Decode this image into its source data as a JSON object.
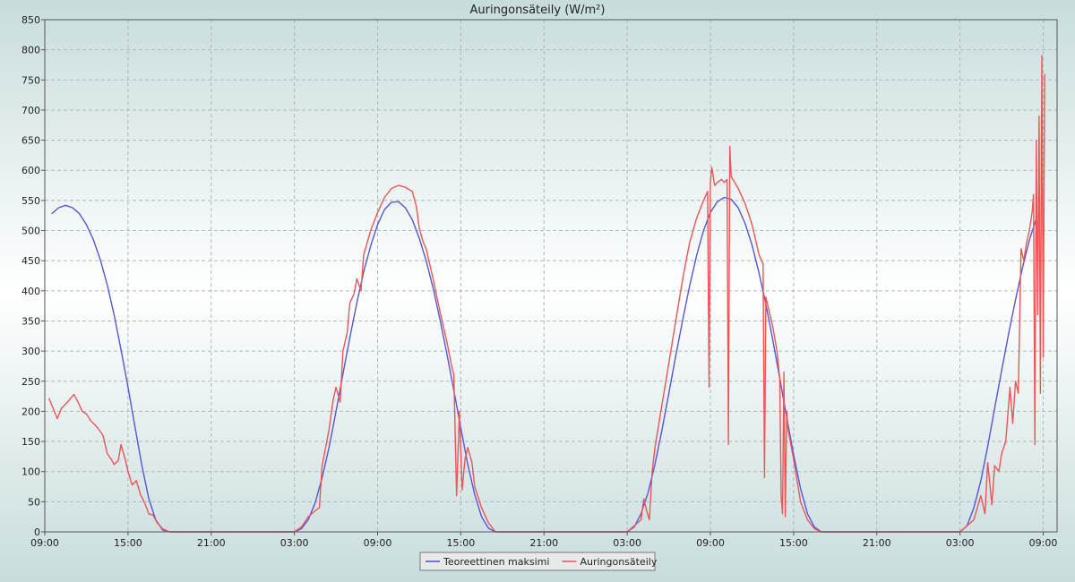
{
  "chart_data": {
    "type": "line",
    "title": "Auringonsäteily (W/m²)",
    "xlabel": "",
    "ylabel": "",
    "x_range_hours": [
      0,
      73
    ],
    "ylim": [
      0,
      850
    ],
    "y_ticks": [
      0,
      50,
      100,
      150,
      200,
      250,
      300,
      350,
      400,
      450,
      500,
      550,
      600,
      650,
      700,
      750,
      800,
      850
    ],
    "x_ticks": [
      {
        "h": 0,
        "label": "09:00"
      },
      {
        "h": 6,
        "label": "15:00"
      },
      {
        "h": 12,
        "label": "21:00"
      },
      {
        "h": 18,
        "label": "03:00"
      },
      {
        "h": 24,
        "label": "09:00"
      },
      {
        "h": 30,
        "label": "15:00"
      },
      {
        "h": 36,
        "label": "21:00"
      },
      {
        "h": 42,
        "label": "03:00"
      },
      {
        "h": 48,
        "label": "09:00"
      },
      {
        "h": 54,
        "label": "15:00"
      },
      {
        "h": 60,
        "label": "21:00"
      },
      {
        "h": 66,
        "label": "03:00"
      },
      {
        "h": 72,
        "label": "09:00"
      }
    ],
    "grid": true,
    "legend_position": "bottom-center",
    "series": [
      {
        "name": "Teoreettinen maksimi",
        "color": "#5555dd",
        "points": [
          [
            0.5,
            528
          ],
          [
            1.0,
            538
          ],
          [
            1.5,
            542
          ],
          [
            2.0,
            538
          ],
          [
            2.5,
            528
          ],
          [
            3.0,
            510
          ],
          [
            3.5,
            485
          ],
          [
            4.0,
            452
          ],
          [
            4.5,
            410
          ],
          [
            5.0,
            360
          ],
          [
            5.5,
            302
          ],
          [
            6.0,
            240
          ],
          [
            6.5,
            175
          ],
          [
            7.0,
            110
          ],
          [
            7.5,
            55
          ],
          [
            8.0,
            20
          ],
          [
            8.5,
            3
          ],
          [
            9.0,
            0
          ],
          [
            12,
            0
          ],
          [
            17,
            0
          ],
          [
            18.0,
            0
          ],
          [
            18.5,
            5
          ],
          [
            19.0,
            20
          ],
          [
            19.5,
            48
          ],
          [
            20.0,
            90
          ],
          [
            20.5,
            140
          ],
          [
            21.0,
            200
          ],
          [
            21.5,
            262
          ],
          [
            22.0,
            322
          ],
          [
            22.5,
            380
          ],
          [
            23.0,
            432
          ],
          [
            23.5,
            475
          ],
          [
            24.0,
            510
          ],
          [
            24.5,
            535
          ],
          [
            25.0,
            547
          ],
          [
            25.5,
            548
          ],
          [
            26.0,
            538
          ],
          [
            26.5,
            518
          ],
          [
            27.0,
            488
          ],
          [
            27.5,
            450
          ],
          [
            28.0,
            405
          ],
          [
            28.5,
            352
          ],
          [
            29.0,
            295
          ],
          [
            29.5,
            235
          ],
          [
            30.0,
            172
          ],
          [
            30.5,
            112
          ],
          [
            31.0,
            62
          ],
          [
            31.5,
            25
          ],
          [
            32.0,
            6
          ],
          [
            32.5,
            0
          ],
          [
            36,
            0
          ],
          [
            41,
            0
          ],
          [
            42.0,
            0
          ],
          [
            42.5,
            8
          ],
          [
            43.0,
            30
          ],
          [
            43.5,
            65
          ],
          [
            44.0,
            112
          ],
          [
            44.5,
            168
          ],
          [
            45.0,
            230
          ],
          [
            45.5,
            292
          ],
          [
            46.0,
            352
          ],
          [
            46.5,
            408
          ],
          [
            47.0,
            458
          ],
          [
            47.5,
            500
          ],
          [
            48.0,
            530
          ],
          [
            48.5,
            548
          ],
          [
            49.0,
            555
          ],
          [
            49.5,
            552
          ],
          [
            50.0,
            538
          ],
          [
            50.5,
            512
          ],
          [
            51.0,
            476
          ],
          [
            51.5,
            430
          ],
          [
            52.0,
            378
          ],
          [
            52.5,
            318
          ],
          [
            53.0,
            255
          ],
          [
            53.5,
            190
          ],
          [
            54.0,
            128
          ],
          [
            54.5,
            72
          ],
          [
            55.0,
            30
          ],
          [
            55.5,
            8
          ],
          [
            56.0,
            0
          ],
          [
            60,
            0
          ],
          [
            65,
            0
          ],
          [
            66.0,
            0
          ],
          [
            66.5,
            10
          ],
          [
            67.0,
            40
          ],
          [
            67.5,
            85
          ],
          [
            68.0,
            142
          ],
          [
            68.5,
            205
          ],
          [
            69.0,
            268
          ],
          [
            69.5,
            328
          ],
          [
            70.0,
            385
          ],
          [
            70.5,
            438
          ],
          [
            71.0,
            484
          ],
          [
            71.5,
            520
          ]
        ]
      },
      {
        "name": "Auringonsäteily",
        "color": "#ee5555",
        "points": [
          [
            0.3,
            222
          ],
          [
            0.6,
            205
          ],
          [
            0.9,
            188
          ],
          [
            1.2,
            205
          ],
          [
            1.5,
            212
          ],
          [
            1.8,
            220
          ],
          [
            2.1,
            228
          ],
          [
            2.4,
            215
          ],
          [
            2.7,
            200
          ],
          [
            3.0,
            196
          ],
          [
            3.3,
            185
          ],
          [
            3.6,
            178
          ],
          [
            3.9,
            170
          ],
          [
            4.2,
            160
          ],
          [
            4.5,
            130
          ],
          [
            4.8,
            120
          ],
          [
            5.0,
            112
          ],
          [
            5.3,
            118
          ],
          [
            5.5,
            145
          ],
          [
            5.8,
            120
          ],
          [
            6.0,
            100
          ],
          [
            6.3,
            78
          ],
          [
            6.6,
            85
          ],
          [
            6.9,
            62
          ],
          [
            7.2,
            48
          ],
          [
            7.5,
            30
          ],
          [
            7.8,
            28
          ],
          [
            8.1,
            15
          ],
          [
            8.5,
            5
          ],
          [
            9.0,
            0
          ],
          [
            12,
            0
          ],
          [
            17,
            0
          ],
          [
            18.0,
            0
          ],
          [
            18.5,
            8
          ],
          [
            19.0,
            25
          ],
          [
            19.5,
            35
          ],
          [
            19.8,
            40
          ],
          [
            20.0,
            110
          ],
          [
            20.5,
            170
          ],
          [
            20.8,
            220
          ],
          [
            21.0,
            240
          ],
          [
            21.3,
            215
          ],
          [
            21.5,
            300
          ],
          [
            21.8,
            330
          ],
          [
            22.0,
            380
          ],
          [
            22.3,
            395
          ],
          [
            22.5,
            420
          ],
          [
            22.8,
            400
          ],
          [
            23.0,
            460
          ],
          [
            23.5,
            500
          ],
          [
            24.0,
            530
          ],
          [
            24.5,
            555
          ],
          [
            25.0,
            570
          ],
          [
            25.5,
            575
          ],
          [
            26.0,
            572
          ],
          [
            26.5,
            565
          ],
          [
            26.8,
            540
          ],
          [
            27.0,
            505
          ],
          [
            27.3,
            480
          ],
          [
            27.5,
            470
          ],
          [
            28.0,
            420
          ],
          [
            28.5,
            365
          ],
          [
            29.0,
            315
          ],
          [
            29.3,
            280
          ],
          [
            29.5,
            260
          ],
          [
            29.7,
            60
          ],
          [
            29.9,
            200
          ],
          [
            30.1,
            70
          ],
          [
            30.3,
            120
          ],
          [
            30.5,
            140
          ],
          [
            30.8,
            115
          ],
          [
            31.0,
            75
          ],
          [
            31.5,
            40
          ],
          [
            32.0,
            15
          ],
          [
            32.5,
            0
          ],
          [
            36,
            0
          ],
          [
            41,
            0
          ],
          [
            42.0,
            0
          ],
          [
            42.5,
            10
          ],
          [
            43.0,
            20
          ],
          [
            43.2,
            55
          ],
          [
            43.4,
            35
          ],
          [
            43.6,
            20
          ],
          [
            43.8,
            100
          ],
          [
            44.0,
            140
          ],
          [
            44.5,
            210
          ],
          [
            45.0,
            280
          ],
          [
            45.5,
            350
          ],
          [
            46.0,
            420
          ],
          [
            46.5,
            480
          ],
          [
            47.0,
            520
          ],
          [
            47.5,
            550
          ],
          [
            47.8,
            565
          ],
          [
            47.9,
            240
          ],
          [
            48.0,
            580
          ],
          [
            48.1,
            605
          ],
          [
            48.3,
            575
          ],
          [
            48.5,
            580
          ],
          [
            48.8,
            585
          ],
          [
            49.0,
            580
          ],
          [
            49.2,
            585
          ],
          [
            49.3,
            145
          ],
          [
            49.4,
            640
          ],
          [
            49.5,
            590
          ],
          [
            50.0,
            570
          ],
          [
            50.5,
            545
          ],
          [
            51.0,
            510
          ],
          [
            51.5,
            460
          ],
          [
            51.8,
            445
          ],
          [
            51.9,
            90
          ],
          [
            52.0,
            390
          ],
          [
            52.5,
            340
          ],
          [
            52.8,
            300
          ],
          [
            53.0,
            255
          ],
          [
            53.1,
            60
          ],
          [
            53.2,
            30
          ],
          [
            53.3,
            265
          ],
          [
            53.4,
            25
          ],
          [
            53.5,
            200
          ],
          [
            53.6,
            170
          ],
          [
            54.0,
            120
          ],
          [
            54.5,
            50
          ],
          [
            55.0,
            20
          ],
          [
            55.5,
            5
          ],
          [
            56.0,
            0
          ],
          [
            60,
            0
          ],
          [
            65,
            0
          ],
          [
            66.0,
            0
          ],
          [
            66.5,
            10
          ],
          [
            67.0,
            20
          ],
          [
            67.5,
            60
          ],
          [
            67.8,
            30
          ],
          [
            68.0,
            115
          ],
          [
            68.3,
            45
          ],
          [
            68.5,
            110
          ],
          [
            68.8,
            100
          ],
          [
            69.0,
            130
          ],
          [
            69.3,
            150
          ],
          [
            69.6,
            240
          ],
          [
            69.8,
            180
          ],
          [
            70.0,
            250
          ],
          [
            70.2,
            230
          ],
          [
            70.4,
            470
          ],
          [
            70.6,
            450
          ],
          [
            70.8,
            480
          ],
          [
            71.0,
            500
          ],
          [
            71.2,
            530
          ],
          [
            71.3,
            560
          ],
          [
            71.4,
            145
          ],
          [
            71.5,
            650
          ],
          [
            71.6,
            360
          ],
          [
            71.7,
            690
          ],
          [
            71.8,
            230
          ],
          [
            71.9,
            790
          ],
          [
            72.0,
            290
          ],
          [
            72.1,
            760
          ]
        ]
      }
    ]
  }
}
